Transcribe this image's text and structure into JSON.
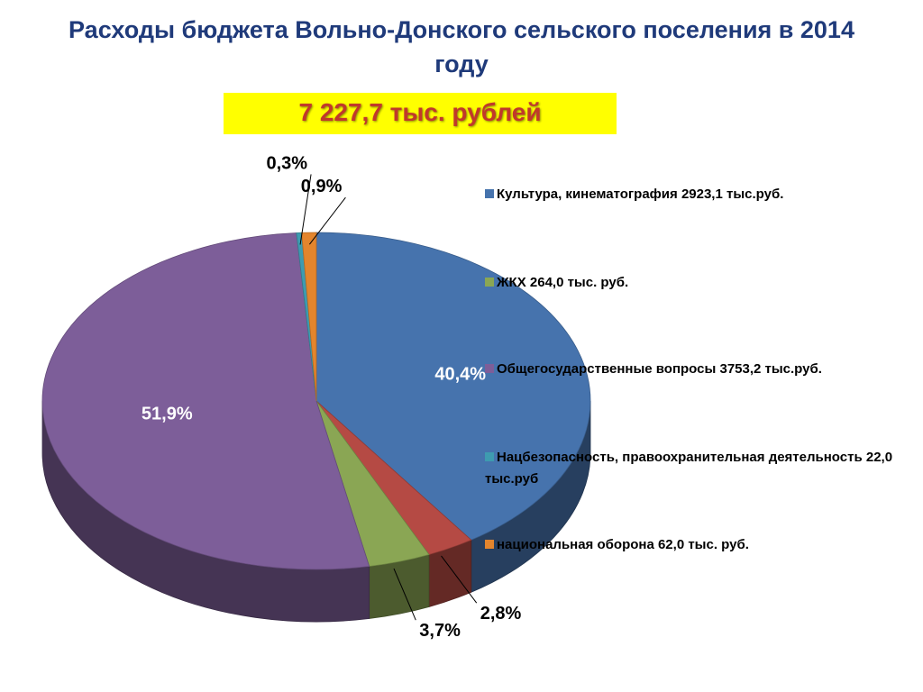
{
  "slide": {
    "title": "Расходы бюджета Вольно-Донского сельского поселения в 2014 году",
    "total": "7 227,7 тыс. рублей"
  },
  "chart_data": {
    "type": "pie",
    "title": "Расходы бюджета Вольно-Донского сельского поселения в 2014 году",
    "legend_position": "right",
    "slices": [
      {
        "name": "Культура, кинематография 2923,1 тыс.руб.",
        "value": 2923.1,
        "percent": 40.4,
        "label": "40,4%",
        "color": "#4673ad"
      },
      {
        "name": "ЖКХ 264,0 тыс. руб.",
        "value": 264.0,
        "percent": 3.7,
        "label": "3,7%",
        "color": "#8aa654"
      },
      {
        "name": "Общегосударственные вопросы 3753,2 тыс.руб.",
        "value": 3753.2,
        "percent": 51.9,
        "label": "51,9%",
        "color": "#7d5e99"
      },
      {
        "name": "Нацбезопасность, правоохранительная деятельность 22,0 тыс.руб",
        "value": 22.0,
        "percent": 0.3,
        "label": "0,3%",
        "color": "#3e9bb0"
      },
      {
        "name": "национальная оборона 62,0 тыс. руб.",
        "value": 62.0,
        "percent": 0.9,
        "label": "0,9%",
        "color": "#e3852d"
      },
      {
        "name": "",
        "value": 203.4,
        "percent": 2.8,
        "label": "2,8%",
        "color": "#b54a44"
      }
    ],
    "legend_entries": [
      {
        "text": "Культура, кинематография 2923,1 тыс.руб.",
        "color": "#4673ad"
      },
      {
        "text": "ЖКХ 264,0 тыс. руб.",
        "color": "#8aa654"
      },
      {
        "text": "Общегосударственные вопросы 3753,2 тыс.руб.",
        "color": "#7d5e99"
      },
      {
        "text": "Нацбезопасность, правоохранительная деятельность 22,0 тыс.руб",
        "color": "#3e9bb0"
      },
      {
        "text": "национальная оборона 62,0 тыс. руб.",
        "color": "#e3852d"
      }
    ]
  }
}
